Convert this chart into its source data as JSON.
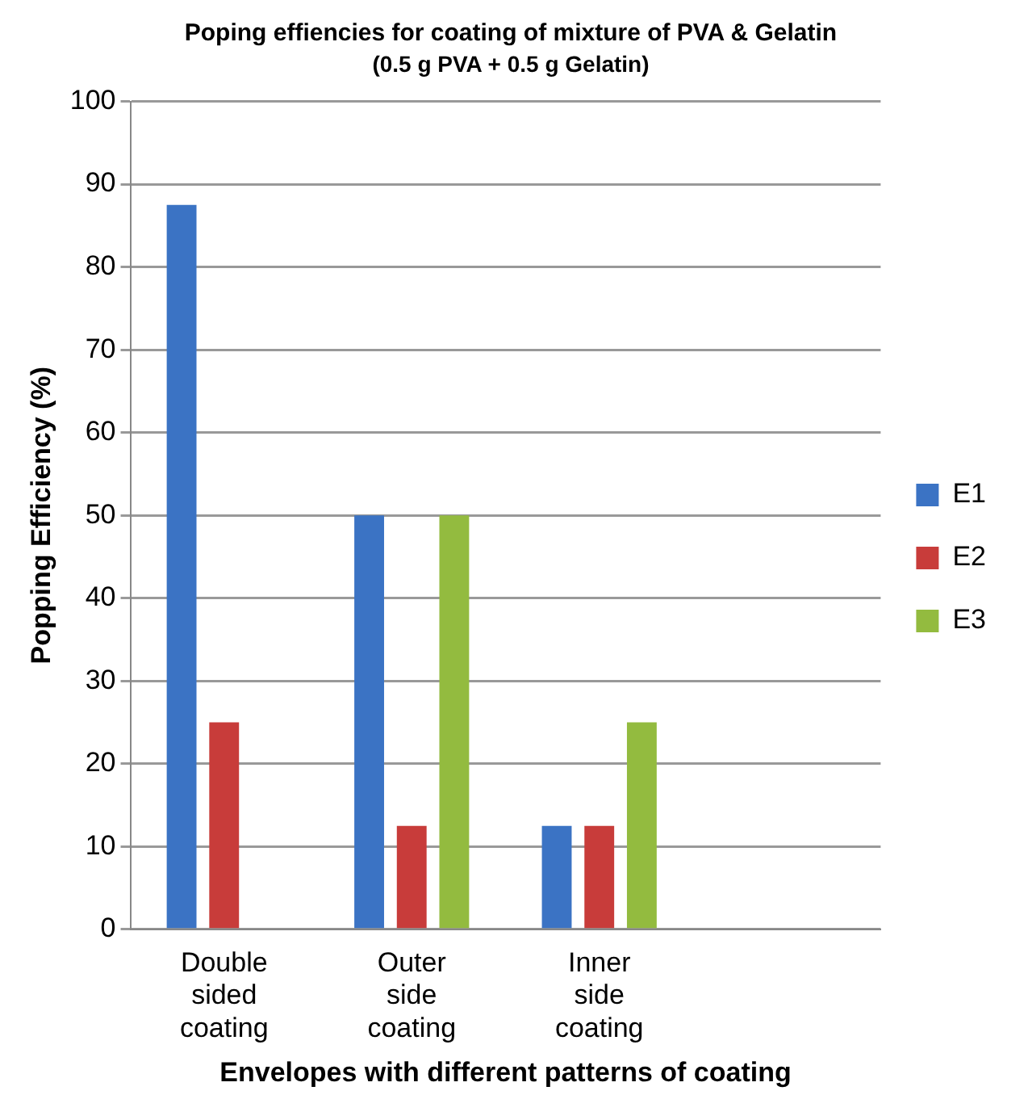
{
  "chart_data": {
    "type": "bar",
    "title": "Poping effiencies for coating of mixture of PVA & Gelatin",
    "subtitle": "(0.5 g PVA + 0.5 g Gelatin)",
    "xlabel": "Envelopes with different patterns of coating",
    "ylabel": "Popping Efficiency (%)",
    "categories": [
      "Double sided coating",
      "Outer side coating",
      "Inner side coating",
      null
    ],
    "series": [
      {
        "name": "E1",
        "color": "#3b73c4",
        "values": [
          87.5,
          50,
          12.5,
          null
        ]
      },
      {
        "name": "E2",
        "color": "#c83c3a",
        "values": [
          25,
          12.5,
          12.5,
          null
        ]
      },
      {
        "name": "E3",
        "color": "#93bb3f",
        "values": [
          0,
          50,
          25,
          null
        ]
      }
    ],
    "ylim": [
      0,
      100
    ],
    "yticks": [
      0,
      10,
      20,
      30,
      40,
      50,
      60,
      70,
      80,
      90,
      100
    ],
    "grid": "y",
    "legend": "right"
  }
}
